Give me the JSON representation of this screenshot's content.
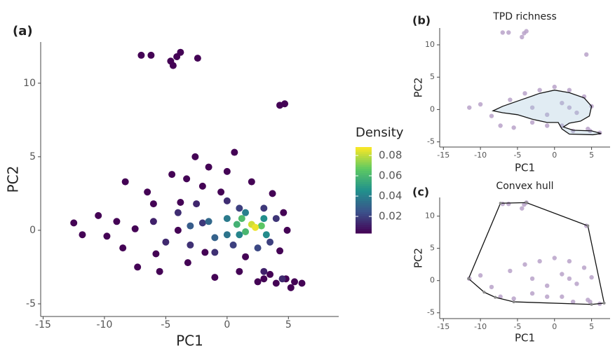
{
  "chart_data": [
    {
      "type": "scatter",
      "panel_label": "(a)",
      "xlabel": "PC1",
      "ylabel": "PC2",
      "xlim": [
        -15.2,
        9.1
      ],
      "ylim": [
        -5.86,
        12.8
      ],
      "xticks": [
        -15,
        -10,
        -5,
        0,
        5
      ],
      "yticks": [
        -5,
        0,
        5,
        10
      ],
      "x": [
        -7,
        -6.2,
        -4.6,
        -4.4,
        -3.8,
        -4.1,
        -2.4,
        4.3,
        4.7,
        0.6,
        -2.6,
        -1.5,
        -3.3,
        -6.5,
        -8.3,
        -12.5,
        -11.8,
        -10.5,
        -9.8,
        -8.5,
        -7.3,
        -5.5,
        -3.2,
        -1,
        1,
        2.5,
        4.8,
        6.1,
        5.2,
        3.5,
        -6,
        -4.5,
        -2,
        0,
        2,
        3.7,
        4.6,
        4.9,
        4.3,
        -9,
        -7.5,
        -5.8,
        -3.8,
        -0.5,
        1.5,
        -1.8,
        -4,
        3,
        4,
        5.5,
        -6,
        -5,
        -4,
        -3,
        -2.5,
        -1,
        -2,
        0,
        1,
        3,
        4,
        3.5,
        0.5,
        2.5,
        3,
        4.5,
        -3,
        -1.5,
        -1,
        0,
        0,
        1,
        1.5,
        3,
        3.2,
        0.8,
        1.2,
        2.8,
        1.5,
        2,
        2.3
      ],
      "y": [
        11.9,
        11.9,
        11.5,
        11.2,
        12.1,
        11.8,
        11.7,
        8.5,
        8.6,
        5.3,
        5,
        4.3,
        3.5,
        2.6,
        3.3,
        0.5,
        -0.3,
        1,
        -0.4,
        -1.2,
        -2.5,
        -2.8,
        -2.2,
        -3.2,
        -2.8,
        -3.5,
        -3.3,
        -3.6,
        -3.9,
        -3,
        1.8,
        3.8,
        3,
        4,
        3.3,
        2.5,
        1.2,
        0,
        -1.4,
        0.6,
        0.1,
        -1.6,
        1.9,
        2.6,
        -1.8,
        -1.5,
        0,
        -3.3,
        -3.6,
        -3.5,
        0.6,
        -0.8,
        1.2,
        -1,
        1.8,
        -1.5,
        0.5,
        2,
        1.5,
        1.5,
        0.8,
        -0.8,
        -1,
        -1.2,
        -2.8,
        -3.3,
        0.3,
        0.6,
        -0.5,
        0.8,
        -0.3,
        -0.3,
        1.2,
        0.8,
        -0.3,
        0.4,
        0.8,
        0.3,
        -0.1,
        0.4,
        0.2
      ],
      "density": [
        0.004,
        0.004,
        0.004,
        0.004,
        0.004,
        0.004,
        0.004,
        0.004,
        0.004,
        0.004,
        0.004,
        0.004,
        0.004,
        0.004,
        0.004,
        0.004,
        0.004,
        0.004,
        0.004,
        0.004,
        0.004,
        0.004,
        0.004,
        0.004,
        0.004,
        0.004,
        0.004,
        0.004,
        0.004,
        0.004,
        0.004,
        0.004,
        0.004,
        0.004,
        0.004,
        0.004,
        0.004,
        0.004,
        0.004,
        0.004,
        0.004,
        0.004,
        0.004,
        0.004,
        0.004,
        0.004,
        0.004,
        0.004,
        0.004,
        0.004,
        0.012,
        0.014,
        0.015,
        0.016,
        0.013,
        0.016,
        0.018,
        0.015,
        0.02,
        0.018,
        0.017,
        0.02,
        0.02,
        0.022,
        0.012,
        0.014,
        0.028,
        0.032,
        0.03,
        0.038,
        0.036,
        0.042,
        0.04,
        0.045,
        0.044,
        0.058,
        0.062,
        0.066,
        0.06,
        0.082,
        0.086
      ],
      "colormap": [
        "#440154",
        "#3b528b",
        "#21918c",
        "#5ec962",
        "#fde725"
      ],
      "clim": [
        0.0035,
        0.0883
      ],
      "cticks": [
        0.02,
        0.04,
        0.06,
        0.08
      ],
      "colorbar_title": "Density"
    },
    {
      "type": "scatter",
      "panel_label": "(b)",
      "title": "TPD richness",
      "xlabel": "PC1",
      "ylabel": "PC2",
      "xlim": [
        -15.5,
        7.5
      ],
      "ylim": [
        -5.8,
        12.6
      ],
      "xticks": [
        -15,
        -10,
        -5,
        0,
        5
      ],
      "yticks": [
        -5,
        0,
        5,
        10
      ],
      "x": [
        -7,
        -6.2,
        -4.4,
        -3.8,
        -4.1,
        4.3,
        -11.5,
        -10,
        -8.5,
        -7.3,
        -5.5,
        -3,
        -1,
        1,
        2.5,
        4.8,
        6.1,
        -6,
        -4,
        -2,
        0,
        2,
        4,
        5,
        -3,
        -1,
        1,
        2,
        3,
        4.5
      ],
      "y": [
        11.9,
        11.9,
        11.2,
        12.1,
        11.8,
        8.5,
        0.3,
        0.8,
        -1,
        -2.5,
        -2.8,
        -2,
        -2.5,
        -2.5,
        -3.3,
        -3.3,
        -3.6,
        1.5,
        2.5,
        3,
        3.5,
        3,
        2,
        0.5,
        0.3,
        -0.8,
        1,
        0.3,
        -0.5,
        -3
      ],
      "color": "#b9a2c9",
      "outline": {
        "x": [
          -8.3,
          -7,
          -4.5,
          -2,
          0,
          2,
          4,
          5,
          4.7,
          3.5,
          2,
          1.2,
          2.5,
          5,
          6.3,
          5.2,
          2,
          1,
          0.5,
          -1,
          -3,
          -5,
          -7
        ],
        "y": [
          -0.2,
          0.5,
          1.5,
          2.5,
          3,
          2.6,
          1.8,
          0.5,
          -1,
          -1.8,
          -2.1,
          -2.7,
          -3.2,
          -3.3,
          -3.7,
          -3.9,
          -3.8,
          -3,
          -2,
          -2,
          -1.5,
          -0.8,
          -0.5
        ]
      }
    },
    {
      "type": "scatter",
      "panel_label": "(c)",
      "title": "Convex hull",
      "xlabel": "PC1",
      "ylabel": "PC2",
      "xlim": [
        -15.5,
        7.5
      ],
      "ylim": [
        -5.9,
        12.9
      ],
      "xticks": [
        -15,
        -10,
        -5,
        0,
        5
      ],
      "yticks": [
        -5,
        0,
        5,
        10
      ],
      "x": [
        -7,
        -6.2,
        -4.4,
        -3.8,
        -4.1,
        4.3,
        -11.5,
        -10,
        -8.5,
        -7.3,
        -5.5,
        -3,
        -1,
        1,
        2.5,
        4.8,
        6.1,
        -6,
        -4,
        -2,
        0,
        2,
        4,
        5,
        -3,
        -1,
        1,
        2,
        3,
        4.5
      ],
      "y": [
        11.9,
        11.9,
        11.2,
        12.1,
        11.8,
        8.5,
        0.3,
        0.8,
        -1,
        -2.5,
        -2.8,
        -2,
        -2.5,
        -2.5,
        -3.3,
        -3.3,
        -3.6,
        1.5,
        2.5,
        3,
        3.5,
        3,
        2,
        0.5,
        0.3,
        -0.8,
        1,
        0.3,
        -0.5,
        -3
      ],
      "color": "#b9a2c9",
      "outline": {
        "x": [
          -11.6,
          -9.5,
          -8,
          -5.5,
          5,
          6.7,
          4.5,
          -3.8,
          -7.3
        ],
        "y": [
          0.3,
          -1.8,
          -2.6,
          -3.3,
          -3.7,
          -3.5,
          8.5,
          12.1,
          12
        ]
      }
    }
  ]
}
